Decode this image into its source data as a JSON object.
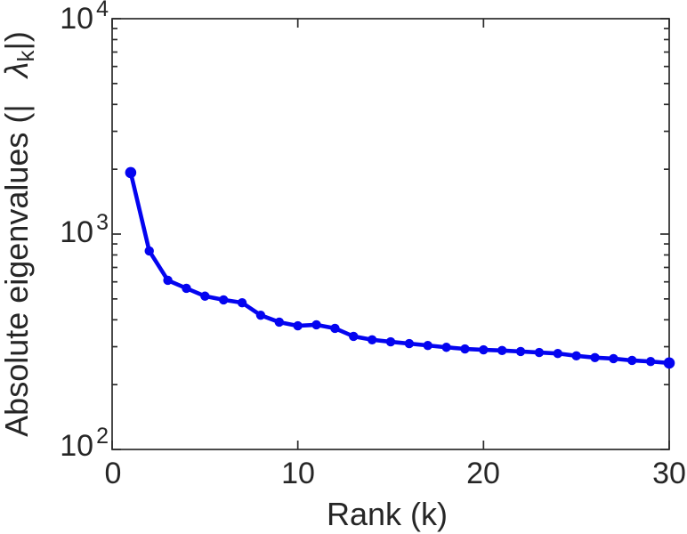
{
  "chart_data": {
    "type": "line",
    "title": "",
    "xlabel": "Rank (k)",
    "ylabel": {
      "prefix": "Absolute eigenvalues (|",
      "spacer": "   ",
      "symbol": "λ",
      "subscript": "k",
      "suffix": "|)"
    },
    "series": [
      {
        "name": "absolute-eigenvalues",
        "x": [
          1,
          2,
          3,
          4,
          5,
          6,
          7,
          8,
          9,
          10,
          11,
          12,
          13,
          14,
          15,
          16,
          17,
          18,
          19,
          20,
          21,
          22,
          23,
          24,
          25,
          26,
          27,
          28,
          29,
          30
        ],
        "values": [
          1930,
          835,
          610,
          560,
          515,
          495,
          480,
          420,
          390,
          375,
          379,
          365,
          335,
          323,
          316,
          310,
          304,
          298,
          293,
          290,
          288,
          285,
          282,
          279,
          272,
          267,
          264,
          259,
          256,
          252
        ]
      }
    ],
    "xlim": [
      0,
      30
    ],
    "ylim": [
      100,
      10000
    ],
    "xscale": "linear",
    "yscale": "log",
    "grid": false,
    "legend": "none",
    "xticks": [
      0,
      10,
      20,
      30
    ],
    "xtick_labels": [
      "0",
      "10",
      "20",
      "30"
    ],
    "ytick_values": [
      10000,
      1000,
      100
    ],
    "ytick_labels": [
      {
        "base": "10",
        "exp": "4"
      },
      {
        "base": "10",
        "exp": "3"
      },
      {
        "base": "10",
        "exp": "2"
      }
    ],
    "line_color": "#0404f0",
    "axis_color": "#2b2b2b",
    "marker": "filled-circle"
  }
}
